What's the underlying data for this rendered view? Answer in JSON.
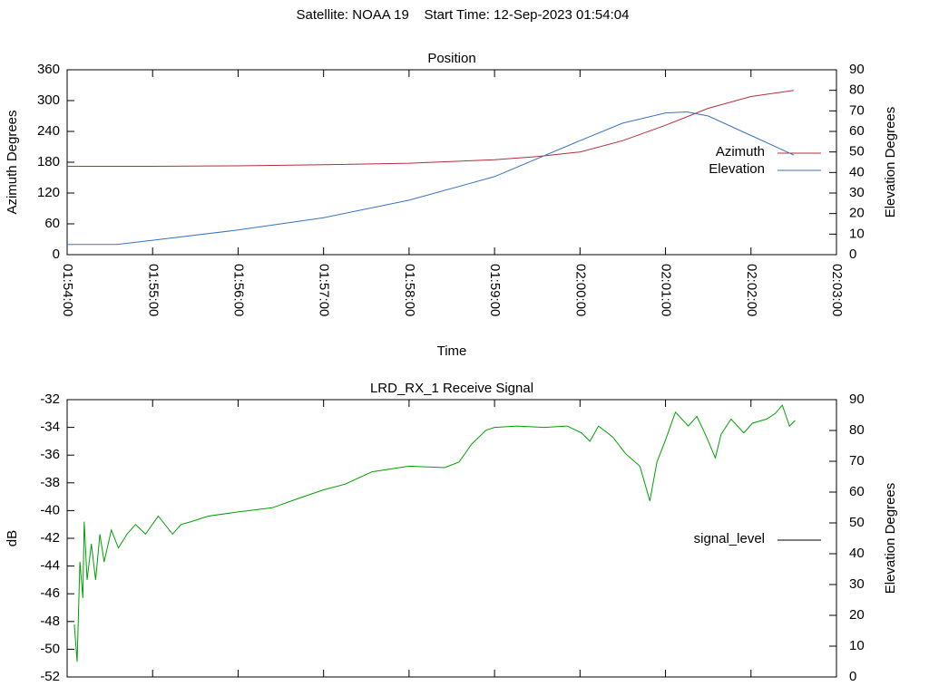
{
  "title": "Satellite: NOAA 19    Start Time: 12-Sep-2023 01:54:04",
  "chart_data": [
    {
      "type": "line",
      "title": "Position",
      "xlabel": "Time",
      "ylabel": "Azimuth Degrees",
      "y2label": "Elevation Degrees",
      "xlim": [
        "01:54:00",
        "02:03:00"
      ],
      "xticks": [
        "01:54:00",
        "01:55:00",
        "01:56:00",
        "01:57:00",
        "01:58:00",
        "01:59:00",
        "02:00:00",
        "02:01:00",
        "02:02:00",
        "02:03:00"
      ],
      "ylim": [
        0,
        360
      ],
      "yticks": [
        0,
        60,
        120,
        180,
        240,
        300,
        360
      ],
      "y2lim": [
        0,
        90
      ],
      "y2ticks": [
        0,
        10,
        20,
        30,
        40,
        50,
        60,
        70,
        80,
        90
      ],
      "legend": "right",
      "series": [
        {
          "name": "Azimuth",
          "color": "#b0303a",
          "x": [
            "01:54:00",
            "01:55:00",
            "01:56:00",
            "01:57:00",
            "01:58:00",
            "01:59:00",
            "01:59:30",
            "02:00:00",
            "02:00:30",
            "02:01:00",
            "02:01:30",
            "02:02:00",
            "02:02:30"
          ],
          "values": [
            172,
            172,
            173,
            175,
            178,
            185,
            191,
            200,
            222,
            252,
            285,
            308,
            320
          ]
        },
        {
          "name": "Elevation",
          "color": "#3a72c0",
          "axis": "y2",
          "x": [
            "01:54:00",
            "01:54:35",
            "01:55:00",
            "01:56:00",
            "01:57:00",
            "01:58:00",
            "01:59:00",
            "02:00:00",
            "02:00:30",
            "02:01:00",
            "02:01:15",
            "02:01:30",
            "02:02:00",
            "02:02:30"
          ],
          "values": [
            5,
            5,
            7,
            12,
            18,
            26.5,
            38,
            55.5,
            64,
            69,
            69.5,
            67.5,
            58,
            48.5
          ]
        }
      ]
    },
    {
      "type": "line",
      "title": "LRD_RX_1 Receive Signal",
      "ylabel": "dB",
      "y2label": "Elevation Degrees",
      "xlim": [
        "01:54:00",
        "02:03:00"
      ],
      "xticks": [
        "01:54:00",
        "01:55:00",
        "01:56:00",
        "01:57:00",
        "01:58:00",
        "01:59:00",
        "02:00:00",
        "02:01:00",
        "02:02:00",
        "02:03:00"
      ],
      "ylim": [
        -52,
        -32
      ],
      "yticks": [
        -52,
        -50,
        -48,
        -46,
        -44,
        -42,
        -40,
        -38,
        -36,
        -34,
        -32
      ],
      "y2lim": [
        0,
        90
      ],
      "y2ticks": [
        0,
        10,
        20,
        30,
        40,
        50,
        60,
        70,
        80,
        90
      ],
      "legend": "right",
      "series": [
        {
          "name": "signal_level",
          "color": "#00a000",
          "x": [
            "01:54:05",
            "01:54:07",
            "01:54:09",
            "01:54:11",
            "01:54:12",
            "01:54:14",
            "01:54:17",
            "01:54:20",
            "01:54:23",
            "01:54:26",
            "01:54:31",
            "01:54:36",
            "01:54:42",
            "01:54:48",
            "01:54:55",
            "01:55:04",
            "01:55:14",
            "01:55:20",
            "01:55:27",
            "01:55:39",
            "01:56:00",
            "01:56:24",
            "01:56:43",
            "01:57:00",
            "01:57:15",
            "01:57:34",
            "01:58:00",
            "01:58:25",
            "01:58:35",
            "01:58:44",
            "01:58:54",
            "01:59:00",
            "01:59:16",
            "01:59:35",
            "01:59:51",
            "02:00:01",
            "02:00:07",
            "02:00:13",
            "02:00:23",
            "02:00:32",
            "02:00:42",
            "02:00:49",
            "02:00:54",
            "02:01:00",
            "02:01:07",
            "02:01:16",
            "02:01:22",
            "02:01:28",
            "02:01:35",
            "02:01:39",
            "02:01:46",
            "02:01:55",
            "02:02:01",
            "02:02:11",
            "02:02:17",
            "02:02:22",
            "02:02:27",
            "02:02:31"
          ],
          "values": [
            -48.2,
            -50.9,
            -43.7,
            -46.3,
            -40.8,
            -45,
            -42.4,
            -45,
            -41.7,
            -43.7,
            -41.4,
            -42.7,
            -41.7,
            -41,
            -41.7,
            -40.4,
            -41.7,
            -41,
            -40.8,
            -40.4,
            -40.1,
            -39.8,
            -39.1,
            -38.5,
            -38.1,
            -37.2,
            -36.8,
            -36.9,
            -36.5,
            -35.2,
            -34.2,
            -34,
            -33.9,
            -34,
            -33.9,
            -34.4,
            -35,
            -33.9,
            -34.7,
            -35.9,
            -36.8,
            -39.3,
            -36.5,
            -34.9,
            -32.9,
            -33.9,
            -33.2,
            -34.5,
            -36.2,
            -34.5,
            -33.4,
            -34.4,
            -33.7,
            -33.4,
            -33,
            -32.4,
            -33.9,
            -33.5
          ]
        }
      ]
    }
  ]
}
